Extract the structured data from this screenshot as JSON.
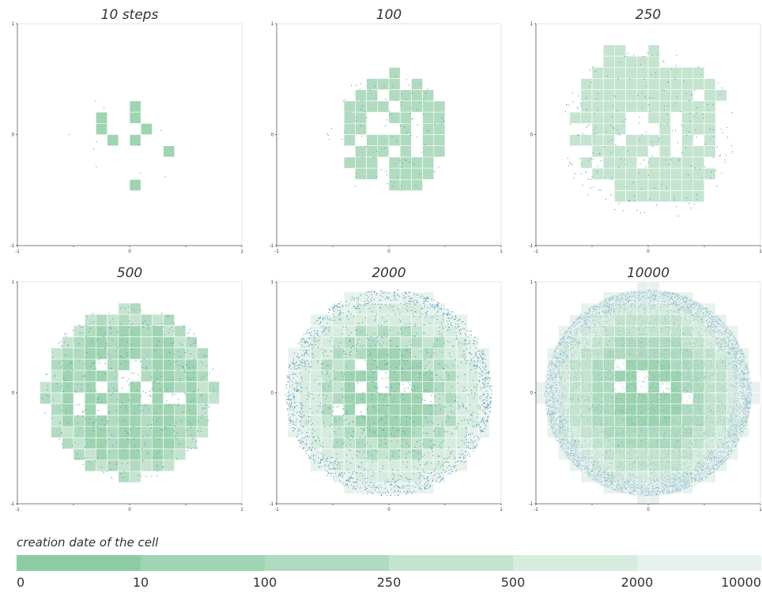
{
  "chart_data": [
    {
      "type": "heatmap",
      "title": "10 steps",
      "step": 10,
      "xlim": [
        -1,
        1
      ],
      "ylim": [
        -1,
        1
      ],
      "x_ticks": [
        "-1",
        "0",
        "1"
      ],
      "y_ticks": [
        "1",
        "0",
        "-1"
      ],
      "cells": [
        [
          0,
          2,
          1
        ],
        [
          -3,
          1,
          1
        ],
        [
          0,
          1,
          1
        ],
        [
          -3,
          0,
          1
        ],
        [
          1,
          0,
          1
        ],
        [
          -2,
          -1,
          1
        ],
        [
          0,
          -1,
          1
        ],
        [
          3,
          -2,
          1
        ],
        [
          0,
          -5,
          1
        ]
      ],
      "point_count": 10
    },
    {
      "type": "heatmap",
      "title": "100",
      "step": 100,
      "xlim": [
        -1,
        1
      ],
      "ylim": [
        -1,
        1
      ],
      "x_ticks": [
        "-1",
        "0",
        "1"
      ],
      "y_ticks": [
        "1",
        "0",
        "-1"
      ],
      "cells": [
        [
          0,
          5,
          2
        ],
        [
          -2,
          4,
          2
        ],
        [
          -1,
          4,
          2
        ],
        [
          0,
          4,
          2
        ],
        [
          2,
          4,
          2
        ],
        [
          -3,
          3,
          2
        ],
        [
          -2,
          3,
          2
        ],
        [
          0,
          3,
          2
        ],
        [
          1,
          3,
          2
        ],
        [
          2,
          3,
          2
        ],
        [
          3,
          3,
          2
        ],
        [
          -4,
          2,
          2
        ],
        [
          -3,
          2,
          2
        ],
        [
          -2,
          2,
          2
        ],
        [
          -1,
          2,
          2
        ],
        [
          1,
          2,
          2
        ],
        [
          2,
          2,
          2
        ],
        [
          3,
          2,
          2
        ],
        [
          4,
          2,
          2
        ],
        [
          -4,
          1,
          2
        ],
        [
          -3,
          1,
          2
        ],
        [
          0,
          1,
          2
        ],
        [
          1,
          1,
          2
        ],
        [
          3,
          1,
          2
        ],
        [
          4,
          1,
          2
        ],
        [
          -4,
          0,
          2
        ],
        [
          -3,
          0,
          2
        ],
        [
          1,
          0,
          2
        ],
        [
          3,
          0,
          2
        ],
        [
          4,
          0,
          2
        ],
        [
          -4,
          -1,
          2
        ],
        [
          -2,
          -1,
          2
        ],
        [
          -1,
          -1,
          2
        ],
        [
          0,
          -1,
          2
        ],
        [
          1,
          -1,
          2
        ],
        [
          3,
          -1,
          2
        ],
        [
          4,
          -1,
          2
        ],
        [
          -3,
          -2,
          2
        ],
        [
          -2,
          -2,
          2
        ],
        [
          -1,
          -2,
          2
        ],
        [
          1,
          -2,
          2
        ],
        [
          3,
          -2,
          2
        ],
        [
          4,
          -2,
          2
        ],
        [
          -4,
          -3,
          2
        ],
        [
          -3,
          -3,
          2
        ],
        [
          -2,
          -3,
          2
        ],
        [
          0,
          -3,
          2
        ],
        [
          1,
          -3,
          2
        ],
        [
          2,
          -3,
          2
        ],
        [
          3,
          -3,
          2
        ],
        [
          -3,
          -4,
          2
        ],
        [
          -2,
          -4,
          2
        ],
        [
          0,
          -4,
          2
        ],
        [
          1,
          -4,
          2
        ],
        [
          2,
          -4,
          2
        ],
        [
          3,
          -4,
          2
        ],
        [
          0,
          -5,
          2
        ],
        [
          1,
          -5,
          2
        ],
        [
          2,
          -5,
          2
        ]
      ],
      "point_count": 100
    },
    {
      "type": "heatmap",
      "title": "250",
      "step": 250,
      "xlim": [
        -1,
        1
      ],
      "ylim": [
        -1,
        1
      ],
      "x_ticks": [
        "-1",
        "0",
        "1"
      ],
      "y_ticks": [
        "1",
        "0",
        "-1"
      ],
      "cells": [
        [
          -4,
          7,
          3
        ],
        [
          -3,
          7,
          3
        ],
        [
          0,
          7,
          3
        ],
        [
          -4,
          6,
          3
        ],
        [
          -3,
          6,
          3
        ],
        [
          -2,
          6,
          3
        ],
        [
          -1,
          6,
          3
        ],
        [
          0,
          6,
          3
        ],
        [
          -5,
          5,
          3
        ],
        [
          -4,
          5,
          3
        ],
        [
          -3,
          5,
          3
        ],
        [
          -2,
          5,
          3
        ],
        [
          -1,
          5,
          3
        ],
        [
          0,
          5,
          3
        ],
        [
          1,
          5,
          3
        ],
        [
          2,
          5,
          3
        ],
        [
          3,
          5,
          3
        ],
        [
          4,
          5,
          3
        ],
        [
          -6,
          4,
          3
        ],
        [
          -5,
          4,
          3
        ],
        [
          -4,
          4,
          3
        ],
        [
          -3,
          4,
          3
        ],
        [
          -2,
          4,
          3
        ],
        [
          -1,
          4,
          3
        ],
        [
          0,
          4,
          3
        ],
        [
          1,
          4,
          3
        ],
        [
          2,
          4,
          3
        ],
        [
          3,
          4,
          3
        ],
        [
          4,
          4,
          3
        ],
        [
          5,
          4,
          3
        ],
        [
          -6,
          3,
          3
        ],
        [
          -5,
          3,
          3
        ],
        [
          -4,
          3,
          3
        ],
        [
          -3,
          3,
          3
        ],
        [
          -2,
          3,
          3
        ],
        [
          -1,
          3,
          3
        ],
        [
          0,
          3,
          3
        ],
        [
          1,
          3,
          3
        ],
        [
          2,
          3,
          3
        ],
        [
          3,
          3,
          3
        ],
        [
          5,
          3,
          3
        ],
        [
          6,
          3,
          3
        ],
        [
          -6,
          2,
          3
        ],
        [
          -5,
          2,
          3
        ],
        [
          -4,
          2,
          3
        ],
        [
          -3,
          2,
          3
        ],
        [
          -2,
          2,
          3
        ],
        [
          -1,
          2,
          3
        ],
        [
          0,
          2,
          3
        ],
        [
          1,
          2,
          3
        ],
        [
          2,
          2,
          3
        ],
        [
          3,
          2,
          3
        ],
        [
          4,
          2,
          3
        ],
        [
          5,
          2,
          3
        ],
        [
          -7,
          1,
          3
        ],
        [
          -6,
          1,
          3
        ],
        [
          -5,
          1,
          3
        ],
        [
          -4,
          1,
          3
        ],
        [
          -3,
          1,
          3
        ],
        [
          0,
          1,
          3
        ],
        [
          1,
          1,
          3
        ],
        [
          3,
          1,
          3
        ],
        [
          4,
          1,
          3
        ],
        [
          5,
          1,
          3
        ],
        [
          -5,
          0,
          3
        ],
        [
          -4,
          0,
          3
        ],
        [
          -3,
          0,
          3
        ],
        [
          1,
          0,
          3
        ],
        [
          3,
          0,
          3
        ],
        [
          4,
          0,
          3
        ],
        [
          5,
          0,
          3
        ],
        [
          -7,
          -1,
          3
        ],
        [
          -6,
          -1,
          3
        ],
        [
          -5,
          -1,
          3
        ],
        [
          -4,
          -1,
          3
        ],
        [
          -2,
          -1,
          3
        ],
        [
          -1,
          -1,
          3
        ],
        [
          0,
          -1,
          3
        ],
        [
          1,
          -1,
          3
        ],
        [
          3,
          -1,
          3
        ],
        [
          5,
          -1,
          3
        ],
        [
          -5,
          -2,
          3
        ],
        [
          -4,
          -2,
          3
        ],
        [
          -3,
          -2,
          3
        ],
        [
          -2,
          -2,
          3
        ],
        [
          -1,
          -2,
          3
        ],
        [
          1,
          -2,
          3
        ],
        [
          3,
          -2,
          3
        ],
        [
          4,
          -2,
          3
        ],
        [
          5,
          -2,
          3
        ],
        [
          -6,
          -3,
          3
        ],
        [
          -4,
          -3,
          3
        ],
        [
          -3,
          -3,
          3
        ],
        [
          -2,
          -3,
          3
        ],
        [
          0,
          -3,
          3
        ],
        [
          1,
          -3,
          3
        ],
        [
          2,
          -3,
          3
        ],
        [
          3,
          -3,
          3
        ],
        [
          4,
          -3,
          3
        ],
        [
          -5,
          -4,
          3
        ],
        [
          -4,
          -4,
          3
        ],
        [
          -3,
          -4,
          3
        ],
        [
          -2,
          -4,
          3
        ],
        [
          -1,
          -4,
          3
        ],
        [
          0,
          -4,
          3
        ],
        [
          1,
          -4,
          3
        ],
        [
          2,
          -4,
          3
        ],
        [
          3,
          -4,
          3
        ],
        [
          4,
          -4,
          3
        ],
        [
          5,
          -4,
          3
        ],
        [
          -3,
          -5,
          3
        ],
        [
          -2,
          -5,
          3
        ],
        [
          -1,
          -5,
          3
        ],
        [
          0,
          -5,
          3
        ],
        [
          1,
          -5,
          3
        ],
        [
          2,
          -5,
          3
        ],
        [
          3,
          -5,
          3
        ],
        [
          4,
          -5,
          3
        ],
        [
          -3,
          -6,
          3
        ],
        [
          -2,
          -6,
          3
        ],
        [
          -1,
          -6,
          3
        ],
        [
          0,
          -6,
          3
        ],
        [
          1,
          -6,
          3
        ],
        [
          2,
          -6,
          3
        ],
        [
          3,
          -6,
          3
        ],
        [
          4,
          -6,
          3
        ]
      ],
      "point_count": 250
    },
    {
      "type": "heatmap",
      "title": "500",
      "step": 500,
      "xlim": [
        -1,
        1
      ],
      "ylim": [
        -1,
        1
      ],
      "x_ticks": [
        "-1",
        "0",
        "1"
      ],
      "y_ticks": [
        "1",
        "0",
        "-1"
      ],
      "holes": [
        [
          -3,
          2
        ],
        [
          -1,
          1
        ],
        [
          -3,
          0
        ],
        [
          -1,
          0
        ],
        [
          1,
          0
        ],
        [
          -5,
          -1
        ],
        [
          3,
          -1
        ],
        [
          4,
          -1
        ],
        [
          1,
          -1
        ],
        [
          -5,
          -2
        ],
        [
          -3,
          -2
        ],
        [
          0,
          2
        ],
        [
          0,
          1
        ]
      ],
      "radius": 7.6,
      "point_count": 500
    },
    {
      "type": "heatmap",
      "title": "2000",
      "step": 2000,
      "xlim": [
        -1,
        1
      ],
      "ylim": [
        -1,
        1
      ],
      "x_ticks": [
        "-1",
        "0",
        "1"
      ],
      "y_ticks": [
        "1",
        "0",
        "-1"
      ],
      "holes": [
        [
          -3,
          2
        ],
        [
          -1,
          1
        ],
        [
          -3,
          0
        ],
        [
          -1,
          0
        ],
        [
          1,
          0
        ],
        [
          3,
          -1
        ],
        [
          -5,
          -2
        ],
        [
          -3,
          -2
        ]
      ],
      "radius": 9.2,
      "point_count": 2000
    },
    {
      "type": "heatmap",
      "title": "10000",
      "step": 10000,
      "xlim": [
        -1,
        1
      ],
      "ylim": [
        -1,
        1
      ],
      "x_ticks": [
        "-1",
        "0",
        "1"
      ],
      "y_ticks": [
        "1",
        "0",
        "-1"
      ],
      "holes": [
        [
          -3,
          2
        ],
        [
          -1,
          1
        ],
        [
          -3,
          0
        ],
        [
          -1,
          0
        ],
        [
          1,
          0
        ],
        [
          3,
          -1
        ]
      ],
      "radius": 9.6,
      "point_count": 10000
    }
  ],
  "legend": {
    "title": "creation date of the cell",
    "labels": [
      "0",
      "10",
      "100",
      "250",
      "500",
      "2000",
      "10000"
    ],
    "colors": [
      "#8ccca4",
      "#9ed4b1",
      "#b0dbc0",
      "#c4e4d0",
      "#d7ecdf",
      "#e8f2ec"
    ]
  },
  "colors": {
    "point": "#3f8fb5",
    "cell_edge": "#ffffff",
    "axis": "#555555"
  }
}
